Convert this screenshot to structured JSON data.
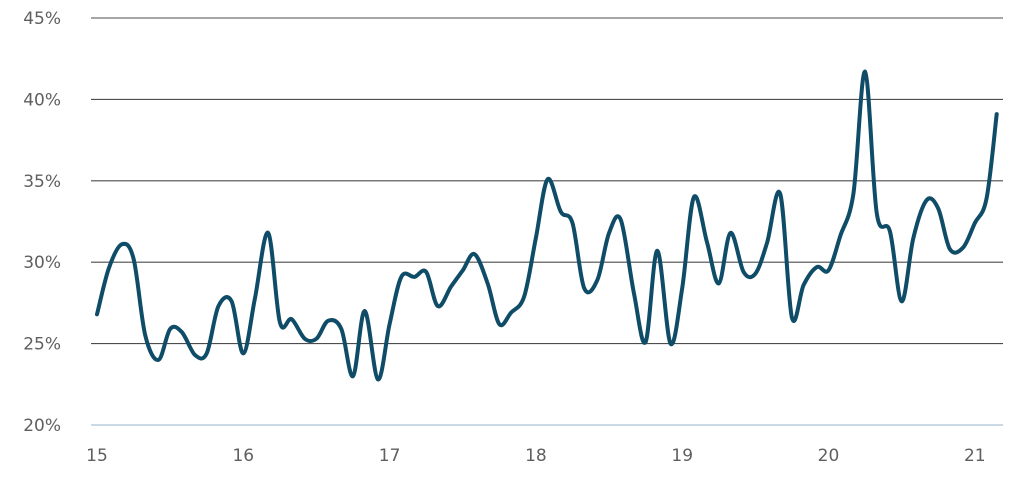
{
  "chart_data": {
    "type": "line",
    "title": "",
    "xlabel": "",
    "ylabel": "",
    "x_ticks": [
      "15",
      "16",
      "17",
      "18",
      "19",
      "20",
      "21"
    ],
    "y_ticks": [
      "20%",
      "25%",
      "30%",
      "35%",
      "40%",
      "45%"
    ],
    "ylim": [
      20,
      45
    ],
    "xlim": [
      15,
      21.18
    ],
    "grid": "horizontal",
    "colors": {
      "line": "#0f4c68",
      "grid": "#4d4d4d",
      "baseline": "#a9c4d3",
      "text": "#5f5f5f"
    },
    "series": [
      {
        "x": [
          15.0,
          15.08,
          15.17,
          15.25,
          15.33,
          15.42,
          15.5,
          15.58,
          15.67,
          15.75,
          15.83,
          15.92,
          16.0,
          16.08,
          16.17,
          16.25,
          16.33,
          16.42,
          16.5,
          16.58,
          16.67,
          16.75,
          16.83,
          16.92,
          17.0,
          17.08,
          17.17,
          17.25,
          17.33,
          17.42,
          17.5,
          17.58,
          17.67,
          17.75,
          17.83,
          17.92,
          18.0,
          18.08,
          18.17,
          18.25,
          18.33,
          18.42,
          18.5,
          18.58,
          18.67,
          18.75,
          18.83,
          18.92,
          19.0,
          19.08,
          19.17,
          19.25,
          19.33,
          19.42,
          19.5,
          19.58,
          19.67,
          19.75,
          19.83,
          19.92,
          20.0,
          20.08,
          20.17,
          20.25,
          20.33,
          20.42,
          20.5,
          20.58,
          20.67,
          20.75,
          20.83,
          20.92,
          21.0,
          21.08,
          21.15
        ],
        "values": [
          26.8,
          29.6,
          31.1,
          30.2,
          25.5,
          24.0,
          25.9,
          25.7,
          24.3,
          24.4,
          27.3,
          27.6,
          24.4,
          27.8,
          31.8,
          26.3,
          26.5,
          25.3,
          25.3,
          26.4,
          25.9,
          23.0,
          27.0,
          22.8,
          26.2,
          29.1,
          29.1,
          29.4,
          27.3,
          28.5,
          29.5,
          30.5,
          28.7,
          26.2,
          26.9,
          27.9,
          31.5,
          35.1,
          33.1,
          32.4,
          28.4,
          28.9,
          31.8,
          32.6,
          28.1,
          25.1,
          30.7,
          25.0,
          28.4,
          34.0,
          31.2,
          28.7,
          31.8,
          29.4,
          29.3,
          31.2,
          34.2,
          26.6,
          28.6,
          29.7,
          29.5,
          31.6,
          34.2,
          41.7,
          33.0,
          31.9,
          27.6,
          31.5,
          33.8,
          33.3,
          30.8,
          30.9,
          32.4,
          33.9,
          39.1
        ]
      }
    ]
  }
}
